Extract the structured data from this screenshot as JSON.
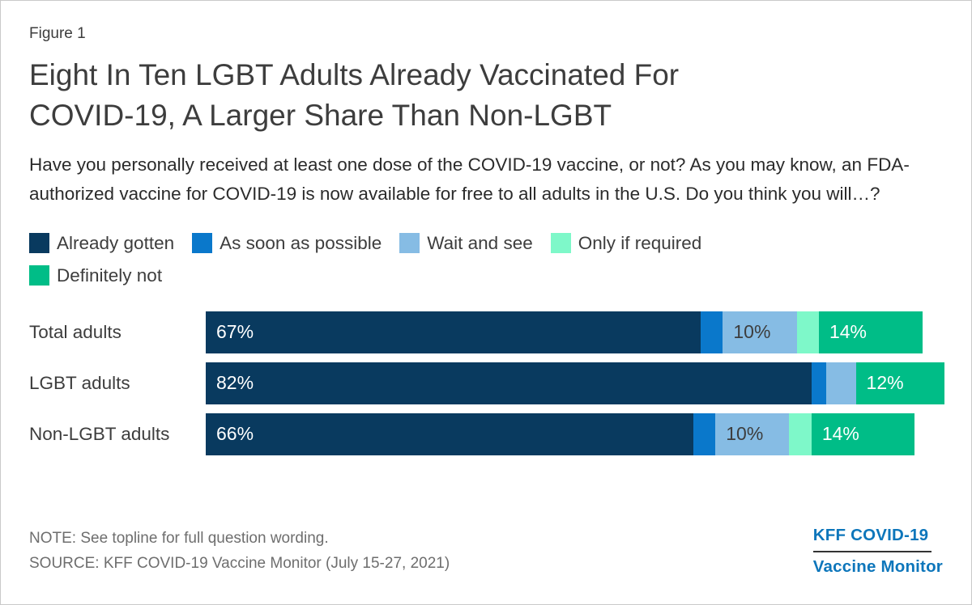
{
  "figure_label": "Figure 1",
  "title_lines": [
    "Eight In Ten LGBT Adults Already Vaccinated For",
    "COVID-19, A Larger Share Than Non-LGBT"
  ],
  "subtitle": "Have you personally received at least one dose of the COVID-19 vaccine, or not? As you may know, an FDA-authorized vaccine for COVID-19 is now available for free to all adults in the U.S. Do you think you will…?",
  "chart_data": {
    "type": "bar",
    "orientation": "horizontal",
    "stacked": true,
    "value_unit": "%",
    "xlim": [
      0,
      100
    ],
    "axis_visible": false,
    "legend_position": "top",
    "categories": [
      "Total adults",
      "LGBT adults",
      "Non-LGBT adults"
    ],
    "series": [
      {
        "name": "Already gotten",
        "color": "#093a5f",
        "label_color": "#ffffff",
        "values": [
          67,
          82,
          66
        ]
      },
      {
        "name": "As soon as possible",
        "color": "#0a78cb",
        "label_color": "#ffffff",
        "values": [
          3,
          2,
          3
        ]
      },
      {
        "name": "Wait and see",
        "color": "#86bce4",
        "label_color": "#3d3d3d",
        "values": [
          10,
          4,
          10
        ]
      },
      {
        "name": "Only if required",
        "color": "#7ef8c9",
        "label_color": "#3d3d3d",
        "values": [
          3,
          0,
          3
        ]
      },
      {
        "name": "Definitely not",
        "color": "#00bd87",
        "label_color": "#ffffff",
        "values": [
          14,
          12,
          14
        ]
      }
    ],
    "data_labels": {
      "show_if_gte": 10,
      "format": "{v}%"
    }
  },
  "footer": {
    "note": "NOTE: See topline for full question wording.",
    "source": "SOURCE: KFF COVID-19 Vaccine Monitor (July 15-27, 2021)",
    "logo": {
      "line1": "KFF COVID-19",
      "line2": "Vaccine Monitor",
      "color": "#0d76bb"
    }
  }
}
